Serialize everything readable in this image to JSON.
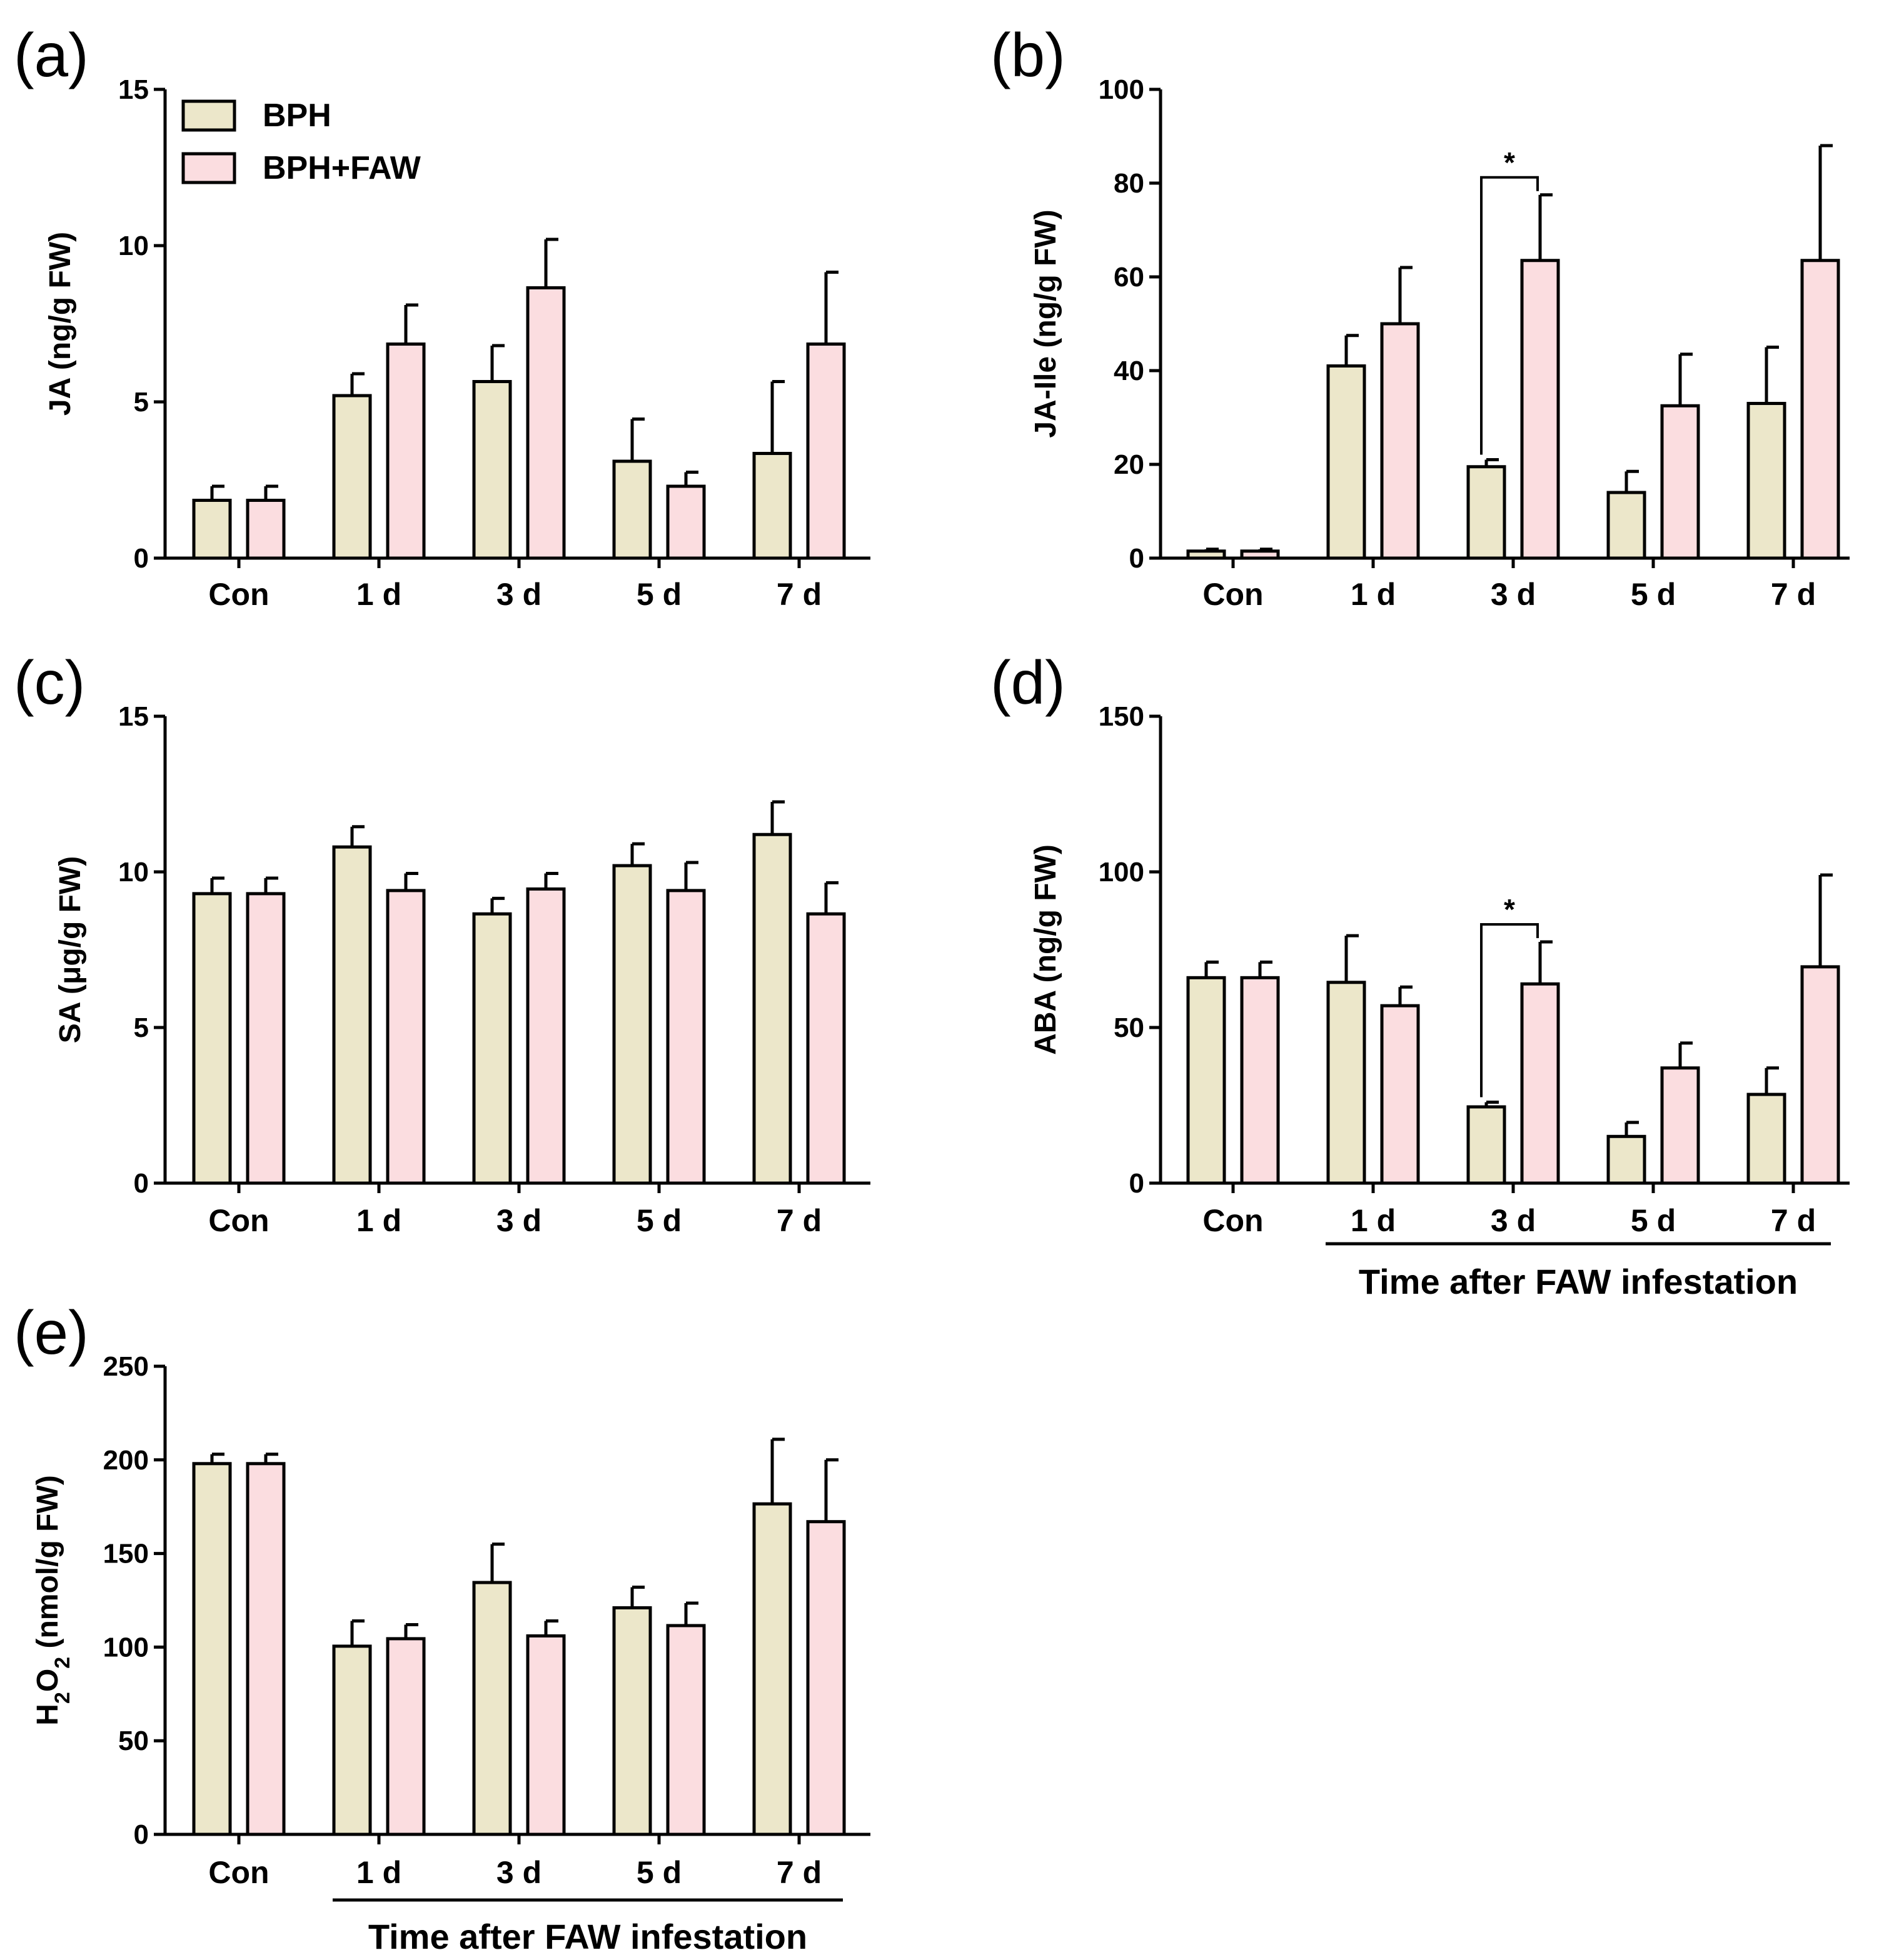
{
  "colors": {
    "BPH": "#ece7ca",
    "BPH+FAW": "#fbdde0",
    "stroke": "#000000"
  },
  "legend": [
    "BPH",
    "BPH+FAW"
  ],
  "chart_data": [
    {
      "id": "a",
      "panel_label": "(a)",
      "type": "bar",
      "categories": [
        "Con",
        "1 d",
        "3 d",
        "5 d",
        "7 d"
      ],
      "ylabel": "JA (ng/g FW)",
      "ylim": [
        0,
        15
      ],
      "yticks": [
        0,
        5,
        10,
        15
      ],
      "series": [
        {
          "name": "BPH",
          "values": [
            1.85,
            5.2,
            5.65,
            3.1,
            3.35
          ],
          "errors": [
            0.45,
            0.7,
            1.15,
            1.35,
            2.3
          ]
        },
        {
          "name": "BPH+FAW",
          "values": [
            1.85,
            6.85,
            8.65,
            2.3,
            6.85
          ],
          "errors": [
            0.45,
            1.25,
            1.55,
            0.45,
            2.3
          ]
        }
      ],
      "significance": [],
      "xlabel": ""
    },
    {
      "id": "b",
      "panel_label": "(b)",
      "type": "bar",
      "categories": [
        "Con",
        "1 d",
        "3 d",
        "5 d",
        "7 d"
      ],
      "ylabel": "JA-Ile (ng/g FW)",
      "ylim": [
        0,
        100
      ],
      "yticks": [
        0,
        20,
        40,
        60,
        80,
        100
      ],
      "series": [
        {
          "name": "BPH",
          "values": [
            1.5,
            41,
            19.5,
            14,
            33
          ],
          "errors": [
            0.4,
            6.5,
            1.5,
            4.5,
            12
          ]
        },
        {
          "name": "BPH+FAW",
          "values": [
            1.5,
            50,
            63.5,
            32.5,
            63.5
          ],
          "errors": [
            0.4,
            12,
            14,
            11,
            24.5
          ]
        }
      ],
      "significance": [
        {
          "category_index": 2,
          "label": "*"
        }
      ],
      "xlabel": ""
    },
    {
      "id": "c",
      "panel_label": "(c)",
      "type": "bar",
      "categories": [
        "Con",
        "1 d",
        "3 d",
        "5 d",
        "7 d"
      ],
      "ylabel": "SA (μg/g FW)",
      "ylim": [
        0,
        15
      ],
      "yticks": [
        0,
        5,
        10,
        15
      ],
      "series": [
        {
          "name": "BPH",
          "values": [
            9.3,
            10.8,
            8.65,
            10.2,
            11.2
          ],
          "errors": [
            0.5,
            0.65,
            0.5,
            0.7,
            1.05
          ]
        },
        {
          "name": "BPH+FAW",
          "values": [
            9.3,
            9.4,
            9.45,
            9.4,
            8.65
          ],
          "errors": [
            0.5,
            0.55,
            0.5,
            0.9,
            1.0
          ]
        }
      ],
      "significance": [],
      "xlabel": ""
    },
    {
      "id": "d",
      "panel_label": "(d)",
      "type": "bar",
      "categories": [
        "Con",
        "1 d",
        "3 d",
        "5 d",
        "7 d"
      ],
      "ylabel": "ABA (ng/g FW)",
      "ylim": [
        0,
        150
      ],
      "yticks": [
        0,
        50,
        100,
        150
      ],
      "series": [
        {
          "name": "BPH",
          "values": [
            66,
            64.5,
            24.5,
            15,
            28.5
          ],
          "errors": [
            5,
            15,
            1.5,
            4.5,
            8.5
          ]
        },
        {
          "name": "BPH+FAW",
          "values": [
            66,
            57,
            64,
            37,
            69.5
          ],
          "errors": [
            5,
            6,
            13.5,
            8,
            29.5
          ]
        }
      ],
      "significance": [
        {
          "category_index": 2,
          "label": "*"
        }
      ],
      "xlabel": "Time after FAW infestation"
    },
    {
      "id": "e",
      "panel_label": "(e)",
      "type": "bar",
      "categories": [
        "Con",
        "1 d",
        "3 d",
        "5 d",
        "7 d"
      ],
      "ylabel_parts": [
        "H",
        "2",
        "O",
        "2",
        " (nmol/g FW)"
      ],
      "ylim": [
        0,
        250
      ],
      "yticks": [
        0,
        50,
        100,
        150,
        200,
        250
      ],
      "series": [
        {
          "name": "BPH",
          "values": [
            198,
            100.5,
            134.5,
            121,
            176.5
          ],
          "errors": [
            5,
            13.5,
            20.5,
            11,
            34.5
          ]
        },
        {
          "name": "BPH+FAW",
          "values": [
            198,
            104.5,
            106,
            111.5,
            167
          ],
          "errors": [
            5,
            7.5,
            8,
            12,
            33
          ]
        }
      ],
      "significance": [],
      "xlabel": "Time after FAW infestation"
    }
  ]
}
